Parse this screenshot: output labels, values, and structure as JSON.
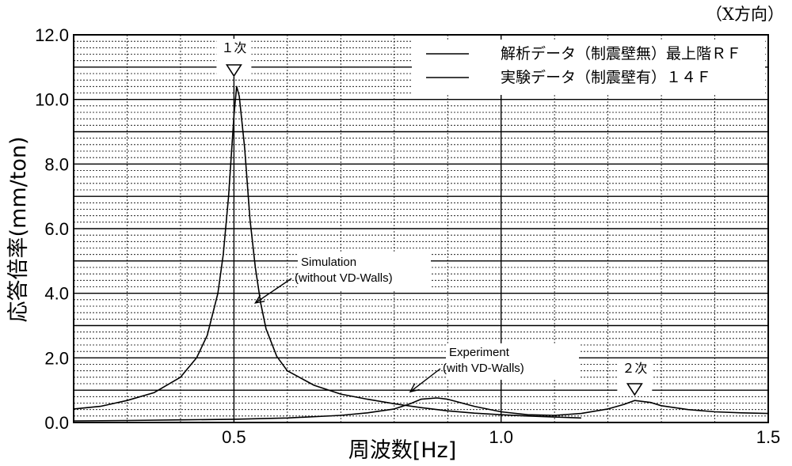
{
  "chart_data": {
    "type": "line",
    "direction_label": "（X方向）",
    "xlabel": "周波数[Hz]",
    "ylabel": "応答倍率(mm/ton)",
    "xlim": [
      0.2,
      1.5
    ],
    "ylim": [
      0,
      12
    ],
    "x_ticks": [
      {
        "value": 0.5,
        "label": "0.5"
      },
      {
        "value": 1.0,
        "label": "1.0"
      },
      {
        "value": 1.5,
        "label": "1.5"
      }
    ],
    "y_ticks": [
      {
        "value": 0,
        "label": "0.0"
      },
      {
        "value": 2,
        "label": "2.0"
      },
      {
        "value": 4,
        "label": "4.0"
      },
      {
        "value": 6,
        "label": "6.0"
      },
      {
        "value": 8,
        "label": "8.0"
      },
      {
        "value": 10,
        "label": "10.0"
      },
      {
        "value": 12,
        "label": "12.0"
      }
    ],
    "grid": true,
    "legend_position": "top-right",
    "series": [
      {
        "name": "解析データ（制震壁無）最上階ＲＦ",
        "x": [
          0.2,
          0.25,
          0.3,
          0.35,
          0.4,
          0.43,
          0.45,
          0.47,
          0.48,
          0.49,
          0.5,
          0.505,
          0.51,
          0.52,
          0.53,
          0.54,
          0.55,
          0.56,
          0.58,
          0.6,
          0.65,
          0.7,
          0.75,
          0.8,
          0.85,
          0.9,
          0.95,
          1.0,
          1.05,
          1.1,
          1.15
        ],
        "y": [
          0.42,
          0.5,
          0.68,
          0.92,
          1.4,
          2.0,
          2.7,
          4.0,
          5.2,
          7.0,
          9.5,
          10.4,
          10.1,
          8.5,
          6.3,
          4.8,
          3.7,
          2.9,
          2.05,
          1.6,
          1.15,
          0.88,
          0.72,
          0.58,
          0.46,
          0.36,
          0.29,
          0.24,
          0.2,
          0.17,
          0.14
        ]
      },
      {
        "name": "実験データ（制震壁有）１４Ｆ",
        "x": [
          0.2,
          0.3,
          0.4,
          0.5,
          0.6,
          0.7,
          0.75,
          0.8,
          0.83,
          0.85,
          0.88,
          0.9,
          0.95,
          1.0,
          1.05,
          1.1,
          1.15,
          1.2,
          1.23,
          1.25,
          1.28,
          1.3,
          1.35,
          1.4,
          1.45,
          1.5
        ],
        "y": [
          0.05,
          0.06,
          0.08,
          0.1,
          0.14,
          0.22,
          0.3,
          0.42,
          0.58,
          0.72,
          0.76,
          0.72,
          0.5,
          0.33,
          0.24,
          0.22,
          0.28,
          0.42,
          0.56,
          0.68,
          0.62,
          0.52,
          0.4,
          0.33,
          0.3,
          0.28
        ]
      }
    ],
    "annotations": [
      {
        "lines": [
          "Simulation",
          "(without VD-Walls)"
        ],
        "arrow_to": {
          "x": 0.54,
          "y": 3.7
        }
      },
      {
        "lines": [
          "Experiment",
          "(with VD-Walls)"
        ],
        "arrow_to": {
          "x": 0.83,
          "y": 0.95
        }
      }
    ],
    "mode_markers": [
      {
        "label": "１次",
        "x": 0.5
      },
      {
        "label": "２次",
        "x": 1.25
      }
    ]
  }
}
